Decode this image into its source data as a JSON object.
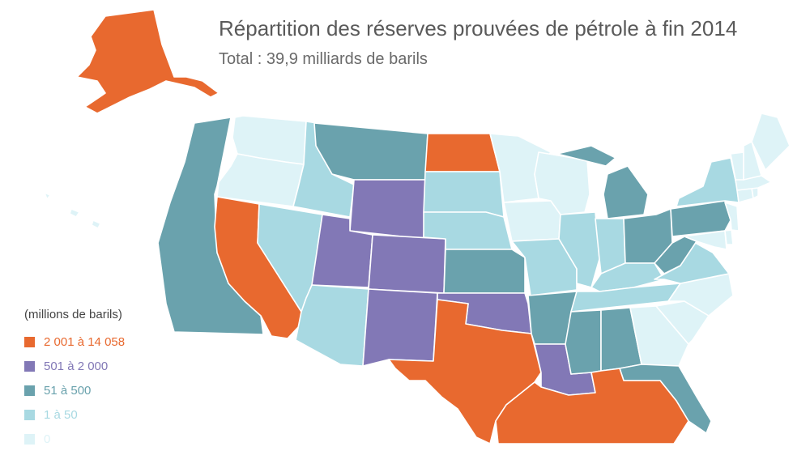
{
  "title": "Répartition des réserves prouvées de pétrole à fin 2014",
  "subtitle": "Total : 39,9 milliards de barils",
  "legend": {
    "title": "(millions de barils)",
    "items": [
      {
        "label": "2 001 à 14 058",
        "color": "#e8692f"
      },
      {
        "label": "501 à 2 000",
        "color": "#8278b6"
      },
      {
        "label": "51 à 500",
        "color": "#6aa2ad"
      },
      {
        "label": "1 à 50",
        "color": "#a8d9e2"
      },
      {
        "label": "0",
        "color": "#def3f7"
      }
    ]
  },
  "regions": [
    {
      "name": "alaska",
      "category": 0
    },
    {
      "name": "hawaii",
      "category": 4
    },
    {
      "name": "washington",
      "category": 4
    },
    {
      "name": "oregon",
      "category": 4
    },
    {
      "name": "california",
      "category": 0
    },
    {
      "name": "pacific-offshore",
      "category": 2
    },
    {
      "name": "nevada",
      "category": 3
    },
    {
      "name": "idaho",
      "category": 3
    },
    {
      "name": "montana",
      "category": 2
    },
    {
      "name": "wyoming",
      "category": 1
    },
    {
      "name": "utah",
      "category": 1
    },
    {
      "name": "arizona",
      "category": 3
    },
    {
      "name": "colorado",
      "category": 1
    },
    {
      "name": "new-mexico",
      "category": 1
    },
    {
      "name": "north-dakota",
      "category": 0
    },
    {
      "name": "south-dakota",
      "category": 3
    },
    {
      "name": "nebraska",
      "category": 3
    },
    {
      "name": "kansas",
      "category": 2
    },
    {
      "name": "oklahoma",
      "category": 1
    },
    {
      "name": "texas",
      "category": 0
    },
    {
      "name": "minnesota",
      "category": 4
    },
    {
      "name": "iowa",
      "category": 4
    },
    {
      "name": "missouri",
      "category": 3
    },
    {
      "name": "arkansas",
      "category": 2
    },
    {
      "name": "louisiana",
      "category": 1
    },
    {
      "name": "wisconsin",
      "category": 4
    },
    {
      "name": "illinois",
      "category": 3
    },
    {
      "name": "michigan",
      "category": 2
    },
    {
      "name": "indiana",
      "category": 3
    },
    {
      "name": "ohio",
      "category": 2
    },
    {
      "name": "kentucky",
      "category": 3
    },
    {
      "name": "tennessee",
      "category": 3
    },
    {
      "name": "mississippi",
      "category": 2
    },
    {
      "name": "alabama",
      "category": 2
    },
    {
      "name": "georgia",
      "category": 4
    },
    {
      "name": "florida",
      "category": 2
    },
    {
      "name": "south-carolina",
      "category": 4
    },
    {
      "name": "north-carolina",
      "category": 4
    },
    {
      "name": "virginia",
      "category": 3
    },
    {
      "name": "west-virginia",
      "category": 2
    },
    {
      "name": "pennsylvania",
      "category": 2
    },
    {
      "name": "new-york",
      "category": 3
    },
    {
      "name": "maryland",
      "category": 4
    },
    {
      "name": "delaware",
      "category": 4
    },
    {
      "name": "new-jersey",
      "category": 4
    },
    {
      "name": "connecticut",
      "category": 4
    },
    {
      "name": "rhode-island",
      "category": 4
    },
    {
      "name": "massachusetts",
      "category": 4
    },
    {
      "name": "vermont",
      "category": 4
    },
    {
      "name": "new-hampshire",
      "category": 4
    },
    {
      "name": "maine",
      "category": 4
    },
    {
      "name": "gulf-of-mexico-offshore",
      "category": 0
    }
  ]
}
